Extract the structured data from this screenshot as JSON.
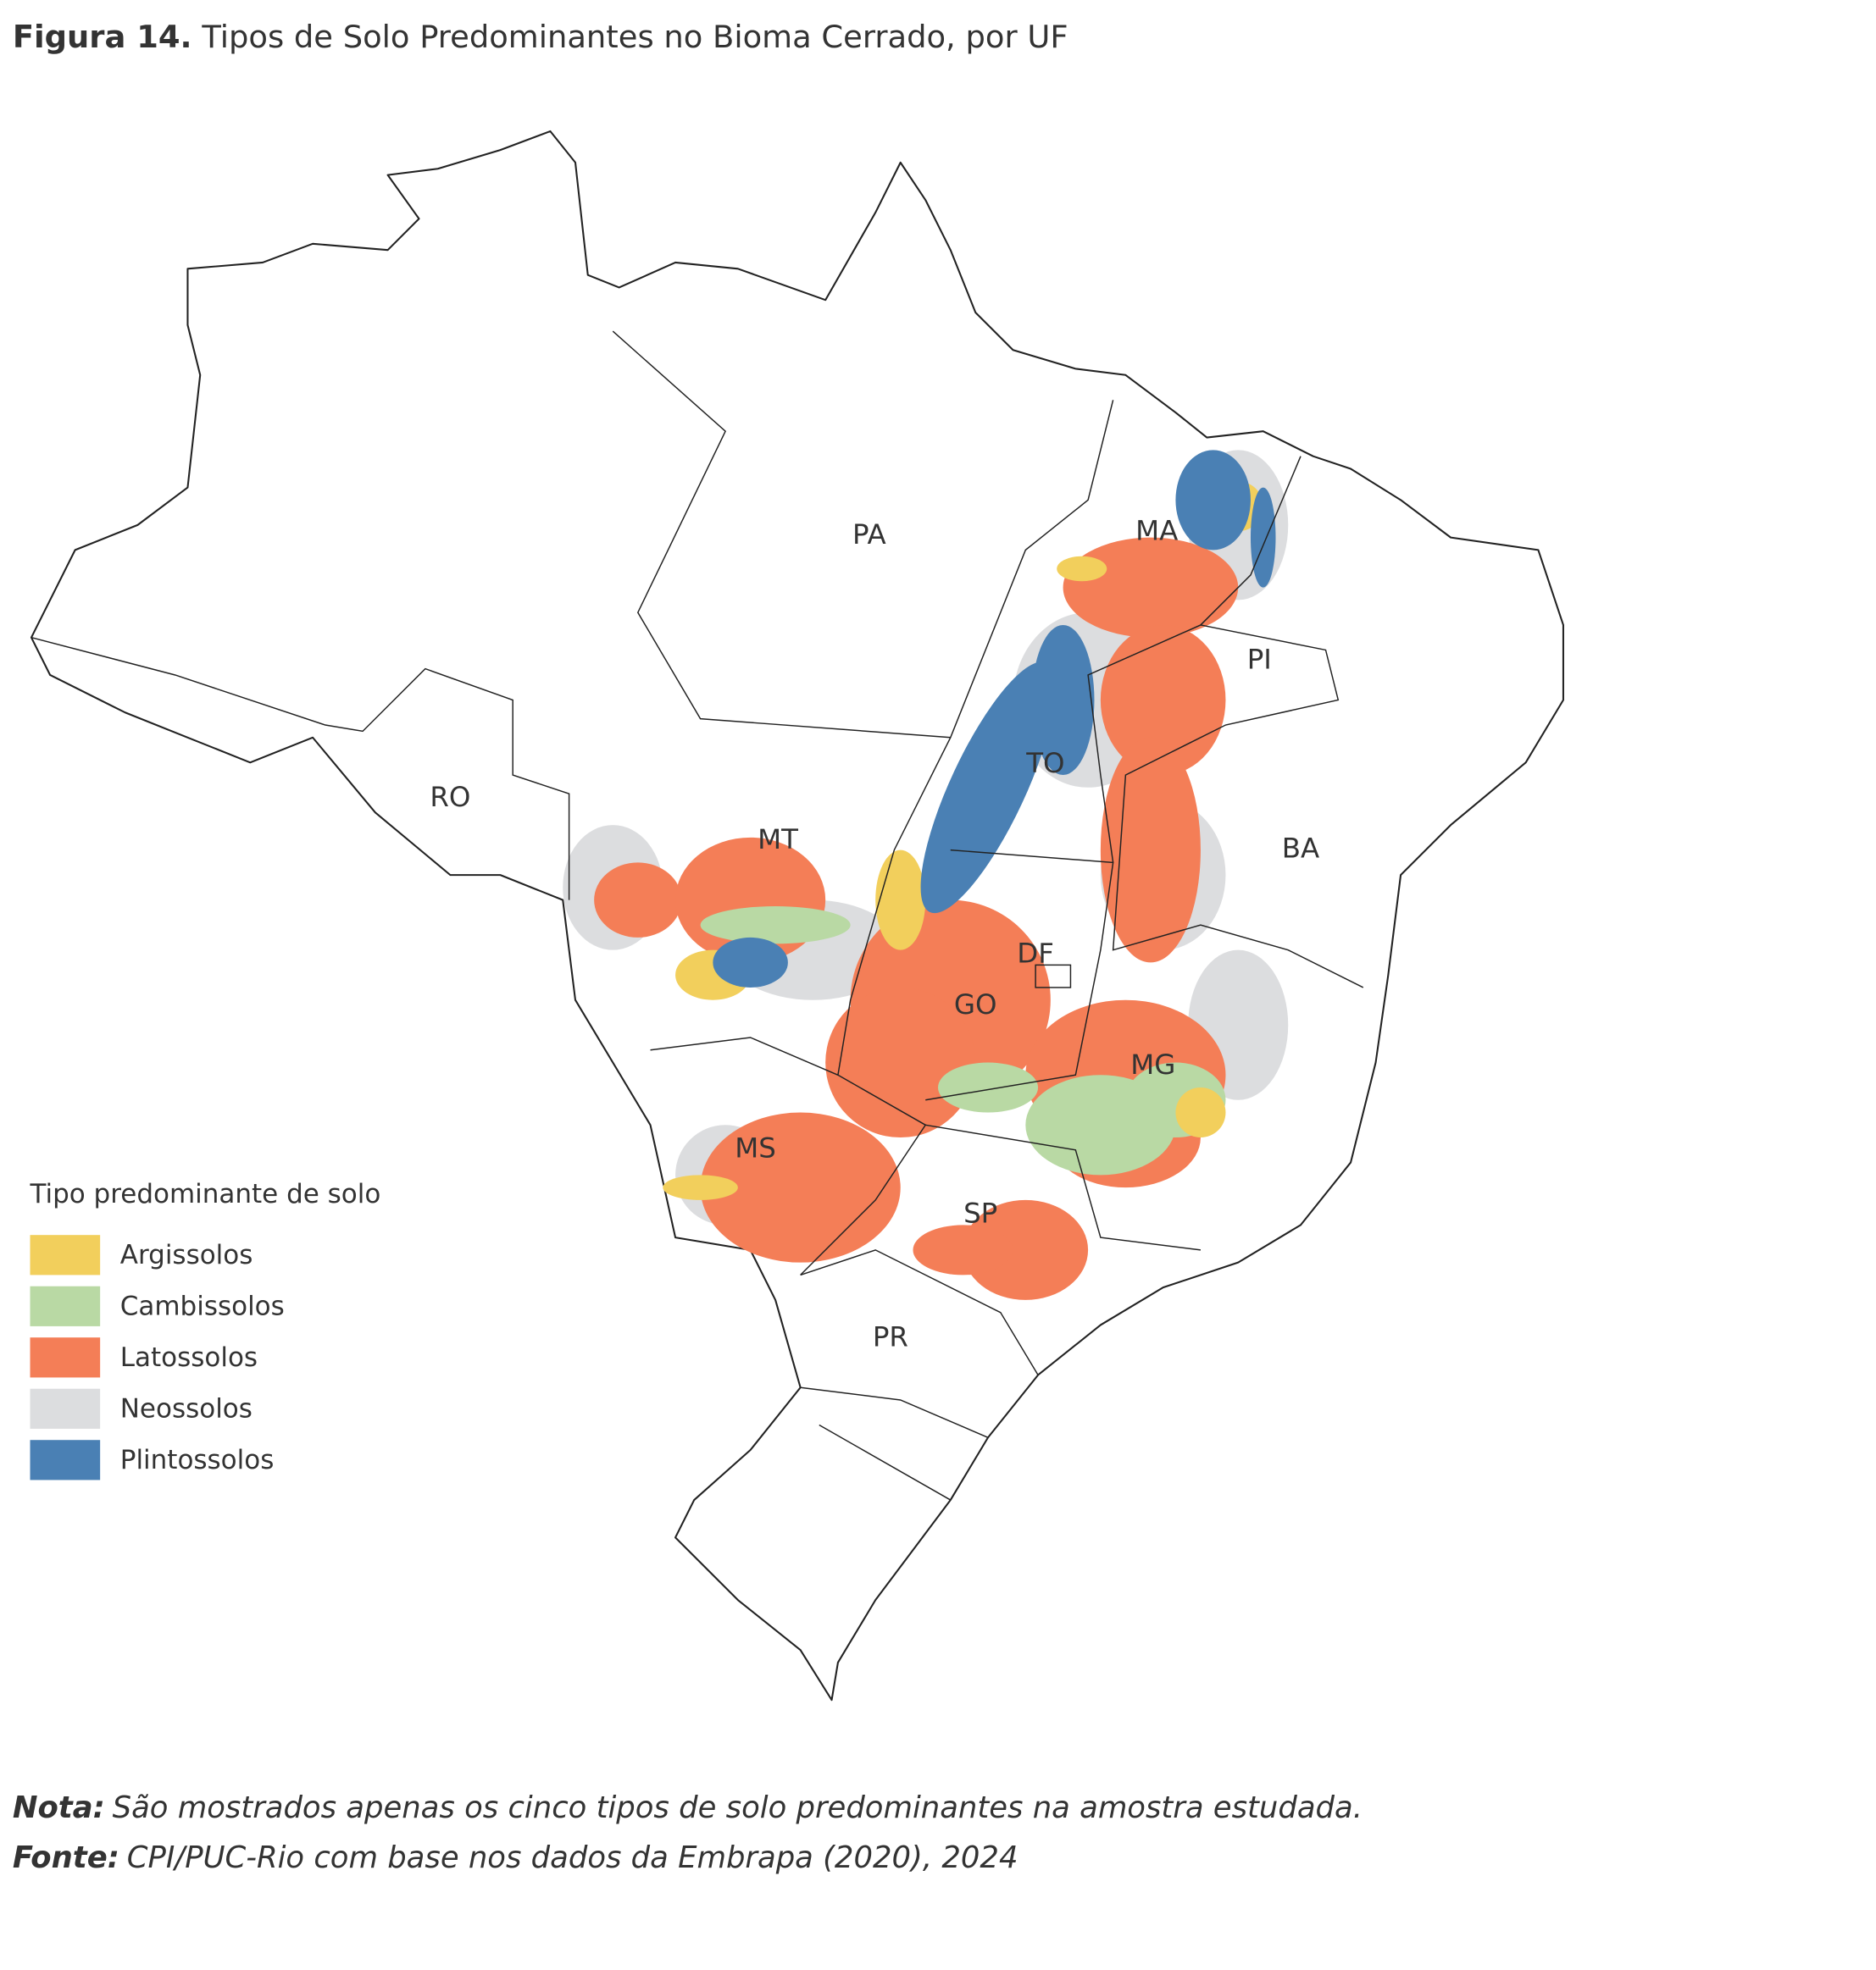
{
  "header": {
    "title_prefix": "Figura 14.",
    "title": "Tipos de Solo Predominantes no Bioma Cerrado, por UF"
  },
  "states": [
    {
      "label": "PA"
    },
    {
      "label": "MA"
    },
    {
      "label": "PI"
    },
    {
      "label": "TO"
    },
    {
      "label": "RO"
    },
    {
      "label": "MT"
    },
    {
      "label": "BA"
    },
    {
      "label": "DF"
    },
    {
      "label": "GO"
    },
    {
      "label": "MG"
    },
    {
      "label": "MS"
    },
    {
      "label": "SP"
    },
    {
      "label": "PR"
    }
  ],
  "legend": {
    "title": "Tipo predominante de solo",
    "items": [
      {
        "label": "Argissolos",
        "color": "#f2cf5c"
      },
      {
        "label": "Cambissolos",
        "color": "#b9d9a4"
      },
      {
        "label": "Latossolos",
        "color": "#f47e57"
      },
      {
        "label": "Neossolos",
        "color": "#dcdddf"
      },
      {
        "label": "Plintossolos",
        "color": "#4a80b4"
      }
    ]
  },
  "footer": {
    "note_label": "Nota:",
    "note": "São mostrados apenas os cinco tipos de solo predominantes na amostra estudada.",
    "source_label": "Fonte:",
    "source": "CPI/PUC-Rio com base nos dados da Embrapa (2020), 2024"
  }
}
